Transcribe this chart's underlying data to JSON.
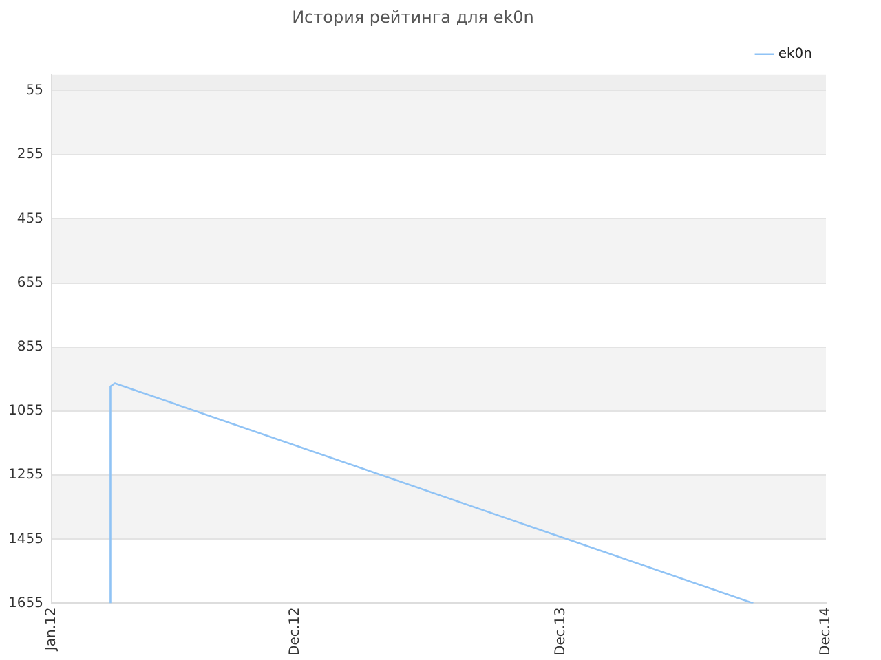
{
  "chart_data": {
    "type": "line",
    "title": "История рейтинга для ek0n",
    "x": [
      "2012-03-22",
      "2012-03-22",
      "2012-03-28",
      "2014-08-23"
    ],
    "series": [
      {
        "name": "ek0n",
        "color": "#90c3f5",
        "values": [
          1655,
          978,
          968,
          1655
        ]
      }
    ],
    "xlim": [
      "2012-01",
      "2014-12"
    ],
    "xticks": [
      {
        "value": "2012-01",
        "label": "Jan.12"
      },
      {
        "value": "2012-12",
        "label": "Dec.12"
      },
      {
        "value": "2013-12",
        "label": "Dec.13"
      },
      {
        "value": "2014-12",
        "label": "Dec.14"
      }
    ],
    "ylim": [
      1655,
      5
    ],
    "yticks": [
      55,
      255,
      455,
      655,
      855,
      1055,
      1255,
      1455,
      1655
    ],
    "bands": [
      {
        "axis": "y",
        "from": 5,
        "to": 55,
        "color": "#eeeeee"
      },
      {
        "axis": "y",
        "from": 55,
        "to": 255,
        "color": "#f3f3f3"
      },
      {
        "axis": "y",
        "from": 455,
        "to": 655,
        "color": "#f3f3f3"
      },
      {
        "axis": "y",
        "from": 855,
        "to": 1055,
        "color": "#f3f3f3"
      },
      {
        "axis": "y",
        "from": 1255,
        "to": 1455,
        "color": "#f3f3f3"
      }
    ],
    "grid": "y",
    "legend": "top right",
    "marker": "none",
    "line_style": "solid"
  }
}
